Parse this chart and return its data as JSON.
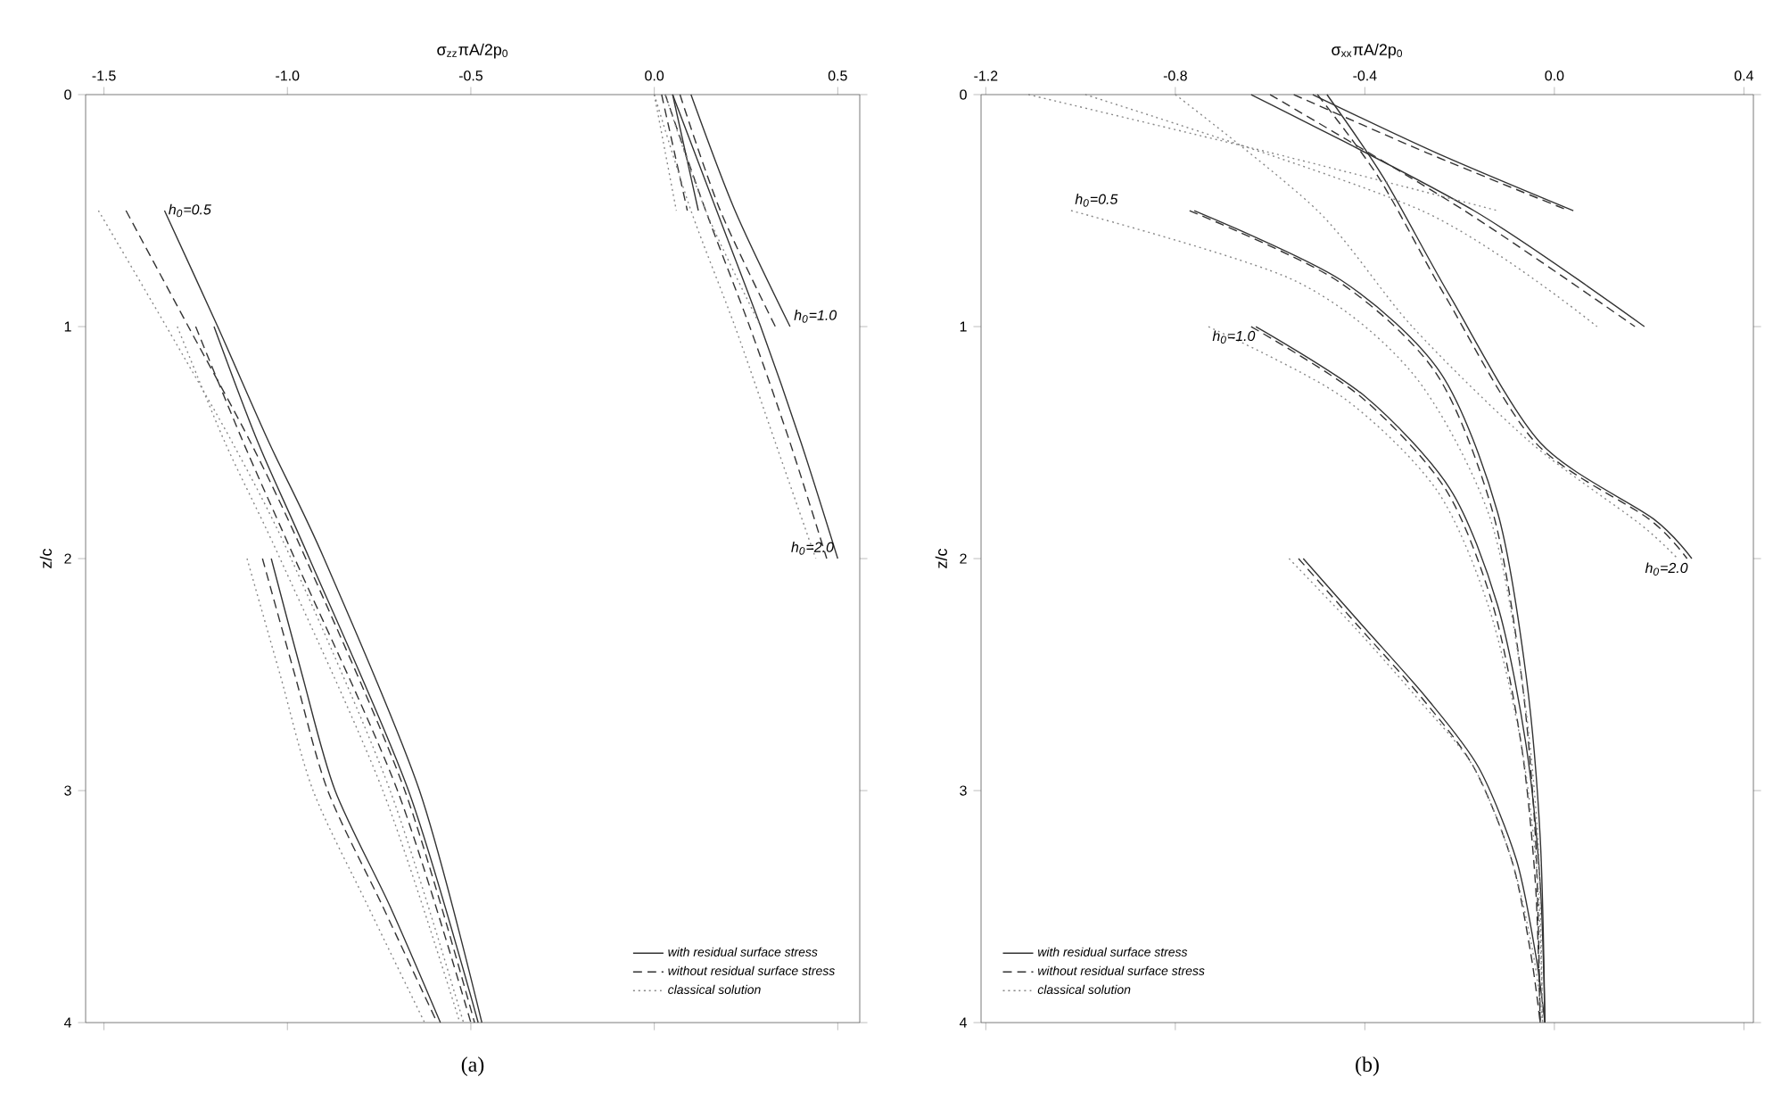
{
  "chart_data": [
    {
      "type": "line",
      "xlabel": "σ$_{zz}$πA/2p$_{0}$",
      "ylabel": "z/c",
      "xlim": [
        -1.55,
        0.56
      ],
      "ylim": [
        4,
        0
      ],
      "xticks": [
        {
          "value": -1.5,
          "label": "-1.5"
        },
        {
          "value": -1.0,
          "label": "-1.0"
        },
        {
          "value": -0.5,
          "label": "-0.5"
        },
        {
          "value": 0.0,
          "label": "0.0"
        },
        {
          "value": 0.5,
          "label": "0.5"
        }
      ],
      "yticks": [
        0,
        1,
        2,
        3,
        4
      ],
      "legend": "bottom right",
      "annotations": [
        {
          "text": "h$_{0}$=0.5",
          "x": -1.335,
          "y": 0.5
        },
        {
          "text": "h$_{0}$=1.0",
          "x": 0.37,
          "y": 1
        },
        {
          "text": "h$_{0}$=2.0",
          "x": 0.5,
          "y": 2
        },
        "(a)"
      ],
      "series": [
        {
          "name": "with residual surface stress",
          "color": "#333333",
          "line_style": "solid",
          "x": [
            0.05,
            0.085,
            0.12
          ],
          "values": [
            0,
            0.25,
            0.5
          ]
        },
        {
          "color": "#333333",
          "line_style": "solid",
          "x": [
            -1.335,
            -1.19,
            -1.05,
            -0.9,
            -0.64,
            -0.47
          ],
          "values": [
            0.5,
            1,
            1.5,
            2,
            3,
            4
          ]
        },
        {
          "color": "#333333",
          "line_style": "solid",
          "x": [
            0.1,
            0.22,
            0.37
          ],
          "values": [
            0,
            0.5,
            1
          ]
        },
        {
          "color": "#333333",
          "line_style": "solid",
          "x": [
            -1.2,
            -1.08,
            -0.94,
            -0.67,
            -0.48
          ],
          "values": [
            1,
            1.5,
            2,
            3,
            4
          ]
        },
        {
          "color": "#333333",
          "line_style": "solid",
          "x": [
            0.05,
            0.17,
            0.29,
            0.4,
            0.5
          ],
          "values": [
            0,
            0.5,
            1,
            1.5,
            2
          ]
        },
        {
          "color": "#333333",
          "line_style": "solid",
          "x": [
            -1.044,
            -0.96,
            -0.87,
            -0.72,
            -0.583
          ],
          "values": [
            2,
            2.5,
            3,
            3.5,
            4
          ]
        },
        {
          "name": "without residual surface stress",
          "color": "#333333",
          "line_style": "dashed",
          "x": [
            0.02,
            0.055,
            0.09
          ],
          "values": [
            0,
            0.25,
            0.5
          ]
        },
        {
          "color": "#333333",
          "line_style": "dashed",
          "x": [
            -1.44,
            -1.27,
            -1.1,
            -0.95,
            -0.68,
            -0.49
          ],
          "values": [
            0.5,
            1,
            1.5,
            2,
            3,
            4
          ]
        },
        {
          "color": "#333333",
          "line_style": "dashed",
          "x": [
            0.07,
            0.18,
            0.33
          ],
          "values": [
            0,
            0.5,
            1
          ]
        },
        {
          "color": "#333333",
          "line_style": "dashed",
          "x": [
            -1.25,
            -1.12,
            -0.98,
            -0.7,
            -0.5
          ],
          "values": [
            1,
            1.5,
            2,
            3,
            4
          ]
        },
        {
          "color": "#333333",
          "line_style": "dashed",
          "x": [
            0.03,
            0.14,
            0.26,
            0.37,
            0.47
          ],
          "values": [
            0,
            0.5,
            1,
            1.5,
            2
          ]
        },
        {
          "color": "#333333",
          "line_style": "dashed",
          "x": [
            -1.068,
            -0.98,
            -0.89,
            -0.74,
            -0.592
          ],
          "values": [
            2,
            2.5,
            3,
            3.5,
            4
          ]
        },
        {
          "name": "classical solution",
          "color": "#888888",
          "line_style": "dotted",
          "x": [
            0.0,
            0.03,
            0.06
          ],
          "values": [
            0,
            0.25,
            0.5
          ]
        },
        {
          "color": "#888888",
          "line_style": "dotted",
          "x": [
            -1.515,
            -1.33,
            -1.15,
            -0.99,
            -0.72,
            -0.52
          ],
          "values": [
            0.5,
            1,
            1.5,
            2,
            3,
            4
          ]
        },
        {
          "color": "#888888",
          "line_style": "dotted",
          "x": [
            0.03,
            0.14,
            0.29
          ],
          "values": [
            0,
            0.5,
            1
          ]
        },
        {
          "color": "#888888",
          "line_style": "dotted",
          "x": [
            -1.3,
            -1.17,
            -1.02,
            -0.74,
            -0.53
          ],
          "values": [
            1,
            1.5,
            2,
            3,
            4
          ]
        },
        {
          "color": "#888888",
          "line_style": "dotted",
          "x": [
            0.0,
            0.1,
            0.22,
            0.33,
            0.44
          ],
          "values": [
            0,
            0.5,
            1,
            1.5,
            2
          ]
        },
        {
          "color": "#888888",
          "line_style": "dotted",
          "x": [
            -1.11,
            -1.02,
            -0.93,
            -0.78,
            -0.626
          ],
          "values": [
            2,
            2.5,
            3,
            3.5,
            4
          ]
        }
      ]
    },
    {
      "type": "line",
      "xlabel": "σ$_{xx}$πA/2p$_{0}$",
      "ylabel": "z/c",
      "xlim": [
        -1.21,
        0.42
      ],
      "ylim": [
        4,
        0
      ],
      "xticks": [
        {
          "value": -1.2,
          "label": "-1.2"
        },
        {
          "value": -0.8,
          "label": "-0.8"
        },
        {
          "value": -0.4,
          "label": "-0.4"
        },
        {
          "value": 0.0,
          "label": "0.0"
        },
        {
          "value": 0.4,
          "label": "0.4"
        }
      ],
      "yticks": [
        0,
        1,
        2,
        3,
        4
      ],
      "legend": "bottom left",
      "annotations": [
        {
          "text": "h$_{0}$=0.5",
          "x": -1.02,
          "y": 0.5
        },
        {
          "text": "h$_{0}$=1.0",
          "x": -0.73,
          "y": 1
        },
        {
          "text": "h$_{0}$=2.0",
          "x": 0.29,
          "y": 2
        },
        "(b)"
      ],
      "series": [
        {
          "name": "with residual surface stress",
          "color": "#333333",
          "line_style": "solid",
          "x": [
            -0.51,
            -0.25,
            0.04
          ],
          "values": [
            0,
            0.25,
            0.5
          ]
        },
        {
          "color": "#333333",
          "line_style": "solid",
          "x": [
            -0.76,
            -0.45,
            -0.24,
            -0.12,
            -0.06,
            -0.03,
            -0.02
          ],
          "values": [
            0.5,
            0.8,
            1.2,
            1.8,
            2.5,
            3.2,
            4
          ]
        },
        {
          "color": "#333333",
          "line_style": "solid",
          "x": [
            -0.64,
            -0.17,
            0.19
          ],
          "values": [
            0,
            0.5,
            1
          ]
        },
        {
          "color": "#333333",
          "line_style": "solid",
          "x": [
            -0.63,
            -0.4,
            -0.22,
            -0.12,
            -0.06,
            -0.03,
            -0.02
          ],
          "values": [
            1,
            1.3,
            1.7,
            2.2,
            2.8,
            3.4,
            4
          ]
        },
        {
          "color": "#333333",
          "line_style": "solid",
          "x": [
            -0.48,
            -0.36,
            -0.22,
            -0.03,
            0.21,
            0.29
          ],
          "values": [
            0,
            0.36,
            0.87,
            1.5,
            1.83,
            2
          ]
        },
        {
          "color": "#333333",
          "line_style": "solid",
          "x": [
            -0.53,
            -0.4,
            -0.27,
            -0.16,
            -0.08,
            -0.04,
            -0.02
          ],
          "values": [
            2,
            2.3,
            2.6,
            2.9,
            3.3,
            3.7,
            4
          ]
        },
        {
          "name": "without residual surface stress",
          "color": "#333333",
          "line_style": "dashed",
          "x": [
            -0.55,
            -0.27,
            0.03
          ],
          "values": [
            0,
            0.25,
            0.5
          ]
        },
        {
          "color": "#333333",
          "line_style": "dashed",
          "x": [
            -0.77,
            -0.46,
            -0.25,
            -0.13,
            -0.07,
            -0.04,
            -0.03
          ],
          "values": [
            0.5,
            0.8,
            1.2,
            1.8,
            2.5,
            3.2,
            4
          ]
        },
        {
          "color": "#333333",
          "line_style": "dashed",
          "x": [
            -0.6,
            -0.19,
            0.17
          ],
          "values": [
            0,
            0.5,
            1
          ]
        },
        {
          "color": "#333333",
          "line_style": "dashed",
          "x": [
            -0.64,
            -0.41,
            -0.23,
            -0.13,
            -0.07,
            -0.04,
            -0.03
          ],
          "values": [
            1,
            1.3,
            1.7,
            2.2,
            2.8,
            3.4,
            4
          ]
        },
        {
          "color": "#333333",
          "line_style": "dashed",
          "x": [
            -0.5,
            -0.37,
            -0.23,
            -0.04,
            0.2,
            0.28
          ],
          "values": [
            0,
            0.36,
            0.87,
            1.5,
            1.83,
            2
          ]
        },
        {
          "color": "#333333",
          "line_style": "dashed",
          "x": [
            -0.54,
            -0.41,
            -0.28,
            -0.17,
            -0.09,
            -0.05,
            -0.03
          ],
          "values": [
            2,
            2.3,
            2.6,
            2.9,
            3.3,
            3.7,
            4
          ]
        },
        {
          "name": "classical solution",
          "color": "#888888",
          "line_style": "dotted",
          "x": [
            -1.11,
            -0.6,
            -0.12
          ],
          "values": [
            0,
            0.25,
            0.5
          ]
        },
        {
          "color": "#888888",
          "line_style": "dotted",
          "x": [
            -1.02,
            -0.55,
            -0.3,
            -0.14,
            -0.07,
            -0.035,
            -0.025
          ],
          "values": [
            0.5,
            0.8,
            1.2,
            1.8,
            2.5,
            3.2,
            4
          ]
        },
        {
          "color": "#888888",
          "line_style": "dotted",
          "x": [
            -0.99,
            -0.28,
            0.09
          ],
          "values": [
            0,
            0.5,
            1
          ]
        },
        {
          "color": "#888888",
          "line_style": "dotted",
          "x": [
            -0.73,
            -0.45,
            -0.25,
            -0.14,
            -0.07,
            -0.035,
            -0.025
          ],
          "values": [
            1,
            1.3,
            1.7,
            2.2,
            2.8,
            3.4,
            4
          ]
        },
        {
          "color": "#888888",
          "line_style": "dotted",
          "x": [
            -0.8,
            -0.5,
            -0.3,
            -0.05,
            0.18,
            0.26
          ],
          "values": [
            0,
            0.5,
            1,
            1.5,
            1.85,
            2
          ]
        },
        {
          "color": "#888888",
          "line_style": "dotted",
          "x": [
            -0.56,
            -0.42,
            -0.29,
            -0.17,
            -0.09,
            -0.045,
            -0.025
          ],
          "values": [
            2,
            2.3,
            2.6,
            2.9,
            3.3,
            3.7,
            4
          ]
        }
      ]
    }
  ]
}
